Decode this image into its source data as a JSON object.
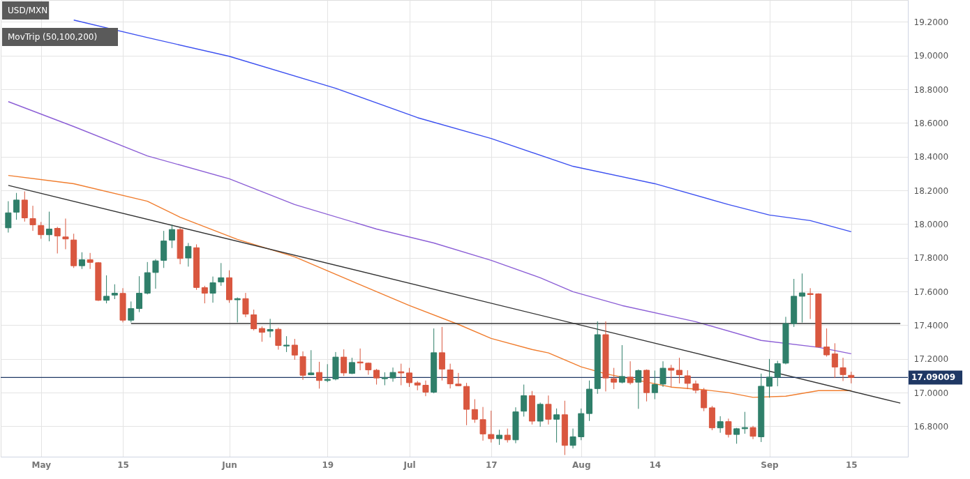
{
  "chart_data": {
    "type": "candlestick",
    "title": "USD/MXN",
    "subtitle": "MovTrip (50,100,200)",
    "categories": [
      null,
      null,
      null,
      null,
      "May",
      null,
      null,
      null,
      null,
      null,
      null,
      null,
      null,
      null,
      "15",
      null,
      null,
      null,
      null,
      null,
      null,
      null,
      null,
      null,
      null,
      null,
      null,
      "Jun",
      null,
      null,
      null,
      null,
      null,
      null,
      null,
      null,
      null,
      null,
      null,
      "19",
      null,
      null,
      null,
      null,
      null,
      null,
      null,
      null,
      null,
      "Jul",
      null,
      null,
      null,
      null,
      null,
      null,
      null,
      null,
      null,
      "17",
      null,
      null,
      null,
      null,
      null,
      null,
      null,
      null,
      null,
      null,
      "Aug",
      null,
      null,
      null,
      null,
      null,
      null,
      null,
      null,
      "14",
      null,
      null,
      null,
      null,
      null,
      null,
      null,
      null,
      null,
      null,
      null,
      null,
      null,
      "Sep",
      null,
      null,
      null,
      null,
      null,
      null,
      null,
      null,
      null,
      "15",
      null,
      null,
      null,
      null,
      null,
      null
    ],
    "ohlc": [
      [
        17.978,
        18.136,
        17.95,
        18.067
      ],
      [
        18.071,
        18.185,
        18.026,
        18.143
      ],
      [
        18.143,
        18.194,
        18.015,
        18.037
      ],
      [
        18.033,
        18.109,
        17.96,
        17.996
      ],
      [
        17.992,
        18.013,
        17.913,
        17.937
      ],
      [
        17.937,
        18.074,
        17.898,
        17.971
      ],
      [
        17.975,
        17.984,
        17.826,
        17.93
      ],
      [
        17.924,
        18.033,
        17.851,
        17.912
      ],
      [
        17.906,
        17.943,
        17.74,
        17.753
      ],
      [
        17.753,
        17.833,
        17.734,
        17.789
      ],
      [
        17.789,
        17.829,
        17.734,
        17.773
      ],
      [
        17.771,
        17.775,
        17.544,
        17.548
      ],
      [
        17.548,
        17.696,
        17.53,
        17.572
      ],
      [
        17.579,
        17.643,
        17.555,
        17.59
      ],
      [
        17.589,
        17.62,
        17.417,
        17.43
      ],
      [
        17.43,
        17.541,
        17.417,
        17.499
      ],
      [
        17.499,
        17.691,
        17.478,
        17.59
      ],
      [
        17.59,
        17.775,
        17.583,
        17.712
      ],
      [
        17.713,
        17.792,
        17.617,
        17.782
      ],
      [
        17.785,
        17.96,
        17.74,
        17.9
      ],
      [
        17.905,
        17.996,
        17.858,
        17.968
      ],
      [
        17.968,
        17.978,
        17.762,
        17.796
      ],
      [
        17.799,
        17.888,
        17.748,
        17.868
      ],
      [
        17.86,
        17.88,
        17.61,
        17.624
      ],
      [
        17.623,
        17.634,
        17.53,
        17.59
      ],
      [
        17.59,
        17.689,
        17.534,
        17.652
      ],
      [
        17.657,
        17.769,
        17.634,
        17.682
      ],
      [
        17.682,
        17.726,
        17.533,
        17.551
      ],
      [
        17.551,
        17.565,
        17.417,
        17.558
      ],
      [
        17.558,
        17.592,
        17.448,
        17.466
      ],
      [
        17.462,
        17.493,
        17.369,
        17.379
      ],
      [
        17.381,
        17.393,
        17.302,
        17.358
      ],
      [
        17.365,
        17.438,
        17.328,
        17.375
      ],
      [
        17.376,
        17.386,
        17.255,
        17.28
      ],
      [
        17.277,
        17.335,
        17.241,
        17.282
      ],
      [
        17.282,
        17.319,
        17.195,
        17.223
      ],
      [
        17.214,
        17.245,
        17.076,
        17.103
      ],
      [
        17.106,
        17.252,
        17.103,
        17.117
      ],
      [
        17.12,
        17.183,
        17.024,
        17.072
      ],
      [
        17.072,
        17.169,
        17.062,
        17.079
      ],
      [
        17.081,
        17.241,
        17.073,
        17.211
      ],
      [
        17.211,
        17.257,
        17.099,
        17.117
      ],
      [
        17.114,
        17.207,
        17.11,
        17.179
      ],
      [
        17.182,
        17.262,
        17.133,
        17.176
      ],
      [
        17.175,
        17.179,
        17.106,
        17.135
      ],
      [
        17.133,
        17.141,
        17.048,
        17.087
      ],
      [
        17.083,
        17.121,
        17.044,
        17.089
      ],
      [
        17.087,
        17.149,
        17.065,
        17.12
      ],
      [
        17.124,
        17.172,
        17.044,
        17.117
      ],
      [
        17.117,
        17.147,
        17.034,
        17.059
      ],
      [
        17.058,
        17.069,
        17.014,
        17.045
      ],
      [
        17.044,
        17.072,
        16.979,
        17.003
      ],
      [
        17.003,
        17.381,
        16.996,
        17.237
      ],
      [
        17.237,
        17.39,
        17.072,
        17.14
      ],
      [
        17.135,
        17.172,
        17.025,
        17.052
      ],
      [
        17.051,
        17.117,
        17.038,
        17.041
      ],
      [
        17.037,
        17.058,
        16.807,
        16.901
      ],
      [
        16.9,
        16.961,
        16.821,
        16.842
      ],
      [
        16.84,
        16.915,
        16.715,
        16.755
      ],
      [
        16.752,
        16.893,
        16.704,
        16.727
      ],
      [
        16.727,
        16.78,
        16.69,
        16.748
      ],
      [
        16.748,
        16.787,
        16.704,
        16.72
      ],
      [
        16.72,
        16.913,
        16.7,
        16.886
      ],
      [
        16.89,
        17.048,
        16.858,
        16.982
      ],
      [
        16.982,
        17.01,
        16.811,
        16.831
      ],
      [
        16.831,
        16.941,
        16.798,
        16.931
      ],
      [
        16.931,
        16.983,
        16.811,
        16.842
      ],
      [
        16.842,
        16.906,
        16.704,
        16.869
      ],
      [
        16.869,
        16.952,
        16.63,
        16.687
      ],
      [
        16.687,
        16.787,
        16.669,
        16.738
      ],
      [
        16.738,
        16.906,
        16.718,
        16.876
      ],
      [
        16.876,
        17.072,
        16.832,
        17.021
      ],
      [
        17.024,
        17.423,
        16.993,
        17.344
      ],
      [
        17.344,
        17.423,
        17.007,
        17.087
      ],
      [
        17.083,
        17.147,
        17.021,
        17.062
      ],
      [
        17.062,
        17.282,
        17.055,
        17.096
      ],
      [
        17.092,
        17.186,
        17.048,
        17.059
      ],
      [
        17.062,
        17.138,
        16.904,
        17.131
      ],
      [
        17.133,
        17.138,
        16.948,
        17.0
      ],
      [
        17.0,
        17.131,
        16.961,
        17.048
      ],
      [
        17.051,
        17.186,
        17.034,
        17.145
      ],
      [
        17.145,
        17.165,
        17.032,
        17.133
      ],
      [
        17.133,
        17.207,
        17.055,
        17.106
      ],
      [
        17.1,
        17.133,
        17.021,
        17.055
      ],
      [
        17.052,
        17.072,
        16.996,
        17.014
      ],
      [
        17.014,
        17.028,
        16.89,
        16.91
      ],
      [
        16.91,
        16.921,
        16.777,
        16.791
      ],
      [
        16.791,
        16.86,
        16.762,
        16.828
      ],
      [
        16.828,
        16.846,
        16.734,
        16.752
      ],
      [
        16.752,
        16.791,
        16.697,
        16.786
      ],
      [
        16.786,
        16.886,
        16.756,
        16.793
      ],
      [
        16.793,
        16.803,
        16.724,
        16.741
      ],
      [
        16.738,
        17.113,
        16.707,
        17.038
      ],
      [
        17.038,
        17.2,
        16.97,
        17.092
      ],
      [
        17.092,
        17.189,
        17.038,
        17.172
      ],
      [
        17.175,
        17.45,
        17.168,
        17.41
      ],
      [
        17.41,
        17.675,
        17.39,
        17.572
      ],
      [
        17.572,
        17.707,
        17.416,
        17.592
      ],
      [
        17.588,
        17.62,
        17.437,
        17.582
      ],
      [
        17.586,
        17.59,
        17.268,
        17.271
      ],
      [
        17.271,
        17.381,
        17.214,
        17.224
      ],
      [
        17.23,
        17.293,
        17.087,
        17.152
      ],
      [
        17.148,
        17.207,
        17.069,
        17.107
      ],
      [
        17.103,
        17.124,
        17.055,
        17.09
      ],
      null,
      null,
      null,
      null,
      null,
      null
    ],
    "colors": [
      "#2f7f6a",
      "#2f7f6a",
      "#d9573f",
      "#d9573f",
      "#d9573f",
      "#2f7f6a",
      "#d9573f",
      "#d9573f",
      "#d9573f",
      "#2f7f6a",
      "#d9573f",
      "#d9573f",
      "#2f7f6a",
      "#2f7f6a",
      "#d9573f",
      "#2f7f6a",
      "#2f7f6a",
      "#2f7f6a",
      "#2f7f6a",
      "#2f7f6a",
      "#2f7f6a",
      "#d9573f",
      "#2f7f6a",
      "#d9573f",
      "#d9573f",
      "#2f7f6a",
      "#2f7f6a",
      "#d9573f",
      "#2f7f6a",
      "#d9573f",
      "#d9573f",
      "#d9573f",
      "#2f7f6a",
      "#d9573f",
      "#2f7f6a",
      "#d9573f",
      "#d9573f",
      "#2f7f6a",
      "#d9573f",
      "#2f7f6a",
      "#2f7f6a",
      "#d9573f",
      "#2f7f6a",
      "#d9573f",
      "#d9573f",
      "#d9573f",
      "#2f7f6a",
      "#2f7f6a",
      "#d9573f",
      "#d9573f",
      "#d9573f",
      "#d9573f",
      "#2f7f6a",
      "#d9573f",
      "#d9573f",
      "#d9573f",
      "#d9573f",
      "#d9573f",
      "#d9573f",
      "#d9573f",
      "#2f7f6a",
      "#d9573f",
      "#2f7f6a",
      "#2f7f6a",
      "#d9573f",
      "#2f7f6a",
      "#d9573f",
      "#2f7f6a",
      "#d9573f",
      "#2f7f6a",
      "#2f7f6a",
      "#2f7f6a",
      "#2f7f6a",
      "#d9573f",
      "#d9573f",
      "#2f7f6a",
      "#d9573f",
      "#2f7f6a",
      "#d9573f",
      "#2f7f6a",
      "#2f7f6a",
      "#d9573f",
      "#d9573f",
      "#d9573f",
      "#d9573f",
      "#d9573f",
      "#d9573f",
      "#2f7f6a",
      "#d9573f",
      "#2f7f6a",
      "#2f7f6a",
      "#d9573f",
      "#2f7f6a",
      "#2f7f6a",
      "#2f7f6a",
      "#2f7f6a",
      "#2f7f6a",
      "#2f7f6a",
      "#d9573f",
      "#d9573f",
      "#d9573f",
      "#d9573f",
      "#d9573f",
      "#d9573f",
      null,
      null,
      null,
      null,
      null,
      null
    ],
    "series": [
      {
        "type": "line",
        "color": "#3c50f0",
        "values": [
          null,
          null,
          null,
          null,
          null,
          null,
          null,
          null,
          19.211,
          null,
          null,
          null,
          null,
          null,
          null,
          null,
          null,
          19.107,
          null,
          null,
          null,
          null,
          null,
          null,
          null,
          null,
          null,
          18.996,
          null,
          null,
          null,
          null,
          null,
          null,
          null,
          null,
          null,
          null,
          null,
          null,
          18.806,
          null,
          null,
          null,
          null,
          null,
          null,
          null,
          null,
          null,
          18.632,
          null,
          null,
          null,
          null,
          null,
          null,
          null,
          null,
          18.508,
          null,
          null,
          null,
          null,
          null,
          null,
          null,
          null,
          null,
          18.343,
          null,
          null,
          null,
          null,
          null,
          null,
          null,
          null,
          null,
          18.24,
          null,
          null,
          null,
          null,
          null,
          null,
          null,
          null,
          18.116,
          null,
          null,
          null,
          null,
          18.054,
          null,
          null,
          null,
          null,
          18.021,
          null,
          null,
          null,
          null,
          17.955,
          null,
          null,
          null,
          null,
          null,
          null
        ]
      },
      {
        "type": "line",
        "color": "#8c5fd6",
        "values": [
          18.727,
          null,
          null,
          null,
          null,
          null,
          null,
          null,
          18.579,
          null,
          null,
          null,
          null,
          null,
          null,
          null,
          null,
          18.405,
          null,
          null,
          null,
          null,
          null,
          null,
          null,
          null,
          null,
          18.269,
          null,
          null,
          null,
          null,
          null,
          null,
          null,
          18.116,
          null,
          null,
          null,
          null,
          null,
          null,
          null,
          null,
          null,
          17.971,
          null,
          null,
          null,
          null,
          null,
          null,
          17.888,
          null,
          null,
          null,
          null,
          null,
          null,
          17.785,
          null,
          null,
          null,
          null,
          null,
          17.682,
          null,
          null,
          null,
          17.599,
          null,
          null,
          null,
          null,
          null,
          17.517,
          null,
          null,
          null,
          null,
          null,
          null,
          null,
          null,
          17.421,
          null,
          null,
          null,
          null,
          null,
          null,
          null,
          17.31,
          null,
          null,
          null,
          null,
          null,
          null,
          17.269,
          null,
          null,
          null,
          17.231,
          null,
          null,
          null,
          null,
          null,
          null
        ]
      },
      {
        "type": "line",
        "color": "#f07d2e",
        "values": [
          18.289,
          null,
          null,
          null,
          null,
          null,
          null,
          null,
          18.24,
          null,
          null,
          null,
          null,
          null,
          null,
          null,
          null,
          18.136,
          null,
          null,
          null,
          18.041,
          null,
          null,
          null,
          null,
          null,
          null,
          17.909,
          null,
          null,
          null,
          null,
          null,
          null,
          17.806,
          null,
          null,
          null,
          null,
          null,
          null,
          null,
          17.64,
          null,
          null,
          null,
          null,
          null,
          17.517,
          null,
          null,
          null,
          null,
          null,
          17.405,
          null,
          null,
          null,
          17.322,
          null,
          null,
          null,
          null,
          17.256,
          null,
          17.236,
          null,
          null,
          null,
          17.153,
          null,
          null,
          17.112,
          null,
          null,
          null,
          null,
          null,
          null,
          null,
          17.033,
          null,
          null,
          null,
          17.017,
          null,
          null,
          17.0,
          null,
          null,
          16.972,
          null,
          null,
          null,
          16.979,
          null,
          null,
          null,
          17.012,
          null,
          null,
          null,
          17.012,
          null,
          null,
          null,
          null,
          null,
          null
        ]
      },
      {
        "type": "line",
        "color": "#333333",
        "values": [
          18.23,
          null,
          null,
          null,
          null,
          null,
          null,
          null,
          null,
          null,
          null,
          null,
          null,
          null,
          null,
          null,
          null,
          null,
          null,
          null,
          null,
          null,
          null,
          null,
          null,
          null,
          null,
          null,
          null,
          null,
          null,
          null,
          null,
          null,
          null,
          null,
          null,
          null,
          null,
          null,
          null,
          null,
          null,
          null,
          null,
          null,
          null,
          null,
          null,
          null,
          null,
          null,
          null,
          null,
          null,
          null,
          null,
          null,
          null,
          null,
          null,
          null,
          null,
          null,
          null,
          null,
          null,
          null,
          null,
          null,
          null,
          null,
          null,
          null,
          null,
          null,
          null,
          null,
          null,
          null,
          null,
          null,
          null,
          null,
          null,
          null,
          null,
          null,
          null,
          null,
          null,
          null,
          null,
          null,
          null,
          null,
          null,
          null,
          null,
          null,
          null,
          null,
          null,
          null,
          null,
          null,
          null,
          null,
          null,
          16.938
        ]
      },
      {
        "type": "line",
        "color": "#333333",
        "values": [
          null,
          null,
          null,
          null,
          null,
          null,
          null,
          null,
          null,
          null,
          null,
          null,
          null,
          null,
          null,
          17.41,
          null,
          null,
          null,
          null,
          null,
          null,
          null,
          null,
          null,
          null,
          null,
          null,
          null,
          null,
          null,
          null,
          null,
          null,
          null,
          null,
          null,
          null,
          null,
          null,
          null,
          null,
          null,
          null,
          null,
          null,
          null,
          null,
          null,
          null,
          null,
          null,
          null,
          null,
          null,
          null,
          null,
          null,
          null,
          null,
          null,
          null,
          null,
          null,
          null,
          null,
          null,
          null,
          null,
          null,
          null,
          null,
          null,
          null,
          null,
          null,
          null,
          null,
          null,
          null,
          null,
          null,
          null,
          null,
          null,
          null,
          null,
          null,
          null,
          null,
          null,
          null,
          null,
          null,
          null,
          null,
          null,
          null,
          null,
          null,
          null,
          null,
          null,
          null,
          null,
          null,
          null,
          null,
          null,
          17.41
        ]
      }
    ],
    "ylim": [
      16.62,
      19.33
    ],
    "yticks": [
      {
        "value": 16.8,
        "label": "16.8000"
      },
      {
        "value": 17.0,
        "label": "17.0000"
      },
      {
        "value": 17.2,
        "label": "17.2000"
      },
      {
        "value": 17.4,
        "label": "17.4000"
      },
      {
        "value": 17.6,
        "label": "17.6000"
      },
      {
        "value": 17.8,
        "label": "17.8000"
      },
      {
        "value": 18.0,
        "label": "18.0000"
      },
      {
        "value": 18.2,
        "label": "18.2000"
      },
      {
        "value": 18.4,
        "label": "18.4000"
      },
      {
        "value": 18.6,
        "label": "18.6000"
      },
      {
        "value": 18.8,
        "label": "18.8000"
      },
      {
        "value": 19.0,
        "label": "19.0000"
      },
      {
        "value": 19.2,
        "label": "19.2000"
      }
    ],
    "ref_lines": [
      {
        "axis": "y",
        "value": 17.09009,
        "label": "17.09009",
        "color": "#1f3864"
      }
    ],
    "grid": true
  }
}
